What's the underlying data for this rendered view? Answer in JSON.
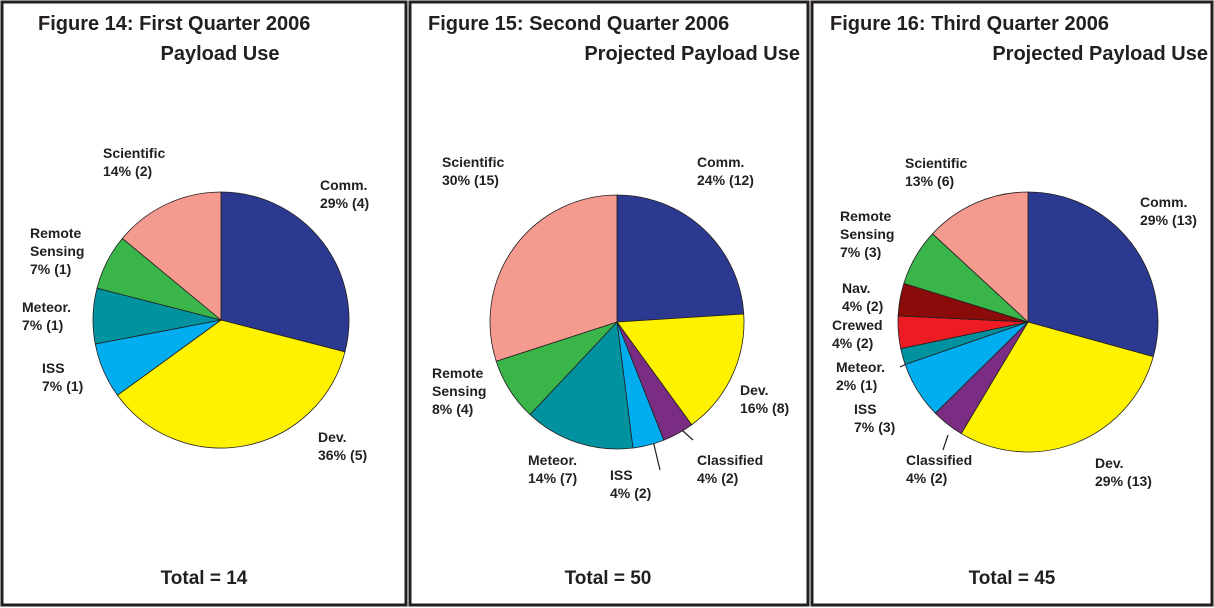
{
  "chart_data": [
    {
      "type": "pie",
      "title": [
        "Figure 14: First Quarter 2006",
        "Payload Use"
      ],
      "categories": [
        "Comm.",
        "Dev.",
        "ISS",
        "Meteor.",
        "Remote Sensing",
        "Scientific"
      ],
      "values": [
        29,
        36,
        7,
        7,
        7,
        14
      ],
      "value_labels": [
        "29%",
        "36%",
        "7%",
        "7%",
        "7%",
        "14%"
      ],
      "counts": [
        4,
        5,
        1,
        1,
        1,
        2
      ],
      "count_labels": [
        "(4)",
        "(5)",
        "(1)",
        "(1)",
        "(1)",
        "(2)"
      ],
      "colors": [
        "#2b3990",
        "#fff200",
        "#00aeef",
        "#00929f",
        "#39b54a",
        "#f49a8f"
      ],
      "total": "Total = 14"
    },
    {
      "type": "pie",
      "title": [
        "Figure 15: Second Quarter 2006",
        "Projected Payload Use"
      ],
      "categories": [
        "Comm.",
        "Dev.",
        "Classified",
        "ISS",
        "Meteor.",
        "Remote Sensing",
        "Scientific"
      ],
      "values": [
        24,
        16,
        4,
        4,
        14,
        8,
        30
      ],
      "value_labels": [
        "24%",
        "16%",
        "4%",
        "4%",
        "14%",
        "8%",
        "30%"
      ],
      "counts": [
        12,
        8,
        2,
        2,
        7,
        4,
        15
      ],
      "count_labels": [
        "(12)",
        "(8)",
        "(2)",
        "(2)",
        "(7)",
        "(4)",
        "(15)"
      ],
      "colors": [
        "#2b3990",
        "#fff200",
        "#7b2d83",
        "#00aeef",
        "#00929f",
        "#39b54a",
        "#f49a8f"
      ],
      "total": "Total = 50"
    },
    {
      "type": "pie",
      "title": [
        "Figure 16: Third Quarter 2006",
        "Projected Payload Use"
      ],
      "categories": [
        "Comm.",
        "Dev.",
        "Classified",
        "ISS",
        "Meteor.",
        "Crewed",
        "Nav.",
        "Remote Sensing",
        "Scientific"
      ],
      "values": [
        29,
        29,
        4,
        7,
        2,
        4,
        4,
        7,
        13
      ],
      "value_labels": [
        "29%",
        "29%",
        "4%",
        "7%",
        "2%",
        "4%",
        "4%",
        "7%",
        "13%"
      ],
      "counts": [
        13,
        13,
        2,
        3,
        1,
        2,
        2,
        3,
        6
      ],
      "count_labels": [
        "(13)",
        "(13)",
        "(2)",
        "(3)",
        "(1)",
        "(2)",
        "(2)",
        "(3)",
        "(6)"
      ],
      "colors": [
        "#2b3990",
        "#fff200",
        "#7b2d83",
        "#00aeef",
        "#00929f",
        "#ed1c24",
        "#8b0a0a",
        "#39b54a",
        "#f49a8f"
      ],
      "total": "Total = 45"
    }
  ]
}
